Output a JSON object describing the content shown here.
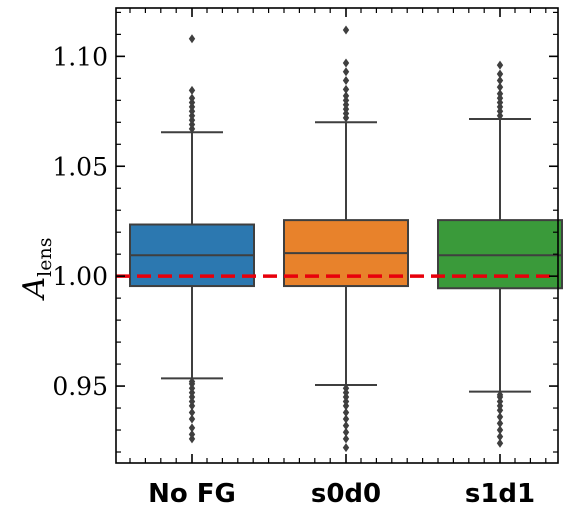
{
  "chart_data": {
    "type": "box",
    "ylabel_main": "A",
    "ylabel_sub": "lens",
    "ylim": [
      0.915,
      1.122
    ],
    "yticks": [
      0.95,
      1.0,
      1.05,
      1.1
    ],
    "ytick_labels": [
      "0.95",
      "1.00",
      "1.05",
      "1.10"
    ],
    "reference_line": {
      "y": 1.0,
      "style": "dashed",
      "color": "#e8000b"
    },
    "categories": [
      "No FG",
      "s0d0",
      "s1d1"
    ],
    "series": [
      {
        "category": "No FG",
        "color": "#2c78b0",
        "whisker_low": 0.9535,
        "q1": 0.9955,
        "median": 1.0095,
        "q3": 1.0235,
        "whisker_high": 1.0655,
        "outliers": [
          0.926,
          0.928,
          0.931,
          0.935,
          0.938,
          0.941,
          0.943,
          0.945,
          0.947,
          0.949,
          0.951,
          0.952,
          1.067,
          1.069,
          1.071,
          1.073,
          1.075,
          1.077,
          1.079,
          1.081,
          1.0845,
          1.108
        ]
      },
      {
        "category": "s0d0",
        "color": "#e8822b",
        "whisker_low": 0.9505,
        "q1": 0.9955,
        "median": 1.0105,
        "q3": 1.0255,
        "whisker_high": 1.07,
        "outliers": [
          0.922,
          0.926,
          0.929,
          0.932,
          0.935,
          0.938,
          0.941,
          0.943,
          0.945,
          0.947,
          0.949,
          1.072,
          1.074,
          1.076,
          1.078,
          1.08,
          1.082,
          1.085,
          1.089,
          1.093,
          1.097,
          1.112
        ]
      },
      {
        "category": "s1d1",
        "color": "#3a9a3a",
        "whisker_low": 0.9475,
        "q1": 0.9945,
        "median": 1.0095,
        "q3": 1.0255,
        "whisker_high": 1.0715,
        "outliers": [
          0.924,
          0.927,
          0.93,
          0.933,
          0.936,
          0.939,
          0.941,
          0.943,
          0.945,
          0.946,
          1.073,
          1.075,
          1.077,
          1.079,
          1.081,
          1.083,
          1.086,
          1.089,
          1.092,
          1.096
        ]
      }
    ]
  }
}
